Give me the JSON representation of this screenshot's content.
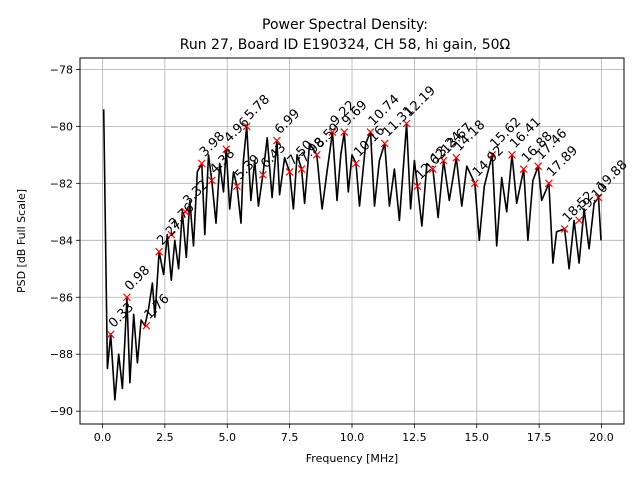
{
  "chart_data": {
    "type": "line",
    "title": "Power Spectral Density:",
    "subtitle": "Run 27, Board ID E190324, CH 58, hi gain, 50Ω",
    "xlabel": "Frequency [MHz]",
    "ylabel": "PSD [dB Full Scale]",
    "xlim": [
      -0.9,
      20.9
    ],
    "ylim": [
      -90.45,
      -77.6
    ],
    "xticks": [
      0.0,
      2.5,
      5.0,
      7.5,
      10.0,
      12.5,
      15.0,
      17.5,
      20.0
    ],
    "xtick_labels": [
      "0.0",
      "2.5",
      "5.0",
      "7.5",
      "10.0",
      "12.5",
      "15.0",
      "17.5",
      "20.0"
    ],
    "yticks": [
      -78,
      -80,
      -82,
      -84,
      -86,
      -88,
      -90
    ],
    "ytick_labels": [
      "−78",
      "−80",
      "−82",
      "−84",
      "−86",
      "−88",
      "−90"
    ],
    "grid": true,
    "series": [
      {
        "color": "#000000",
        "x": [
          0.05,
          0.2,
          0.33,
          0.5,
          0.65,
          0.8,
          0.9,
          0.98,
          1.1,
          1.25,
          1.4,
          1.55,
          1.7,
          1.85,
          2.0,
          2.1,
          2.27,
          2.45,
          2.6,
          2.76,
          2.9,
          3.05,
          3.2,
          3.36,
          3.5,
          3.65,
          3.8,
          3.98,
          4.1,
          4.25,
          4.38,
          4.55,
          4.7,
          4.85,
          4.96,
          5.1,
          5.25,
          5.39,
          5.55,
          5.65,
          5.78,
          5.95,
          6.1,
          6.25,
          6.43,
          6.6,
          6.8,
          6.99,
          7.1,
          7.3,
          7.5,
          7.65,
          7.8,
          7.98,
          8.1,
          8.3,
          8.59,
          8.8,
          9.0,
          9.22,
          9.4,
          9.55,
          9.69,
          9.85,
          10.0,
          10.16,
          10.3,
          10.55,
          10.74,
          10.9,
          11.1,
          11.31,
          11.5,
          11.7,
          11.9,
          12.19,
          12.35,
          12.5,
          12.62,
          12.8,
          13.0,
          13.24,
          13.45,
          13.67,
          13.9,
          14.18,
          14.4,
          14.6,
          14.92,
          15.1,
          15.3,
          15.62,
          15.8,
          16.0,
          16.2,
          16.41,
          16.6,
          16.88,
          17.05,
          17.25,
          17.46,
          17.6,
          17.89,
          18.05,
          18.2,
          18.52,
          18.7,
          18.9,
          19.1,
          19.3,
          19.5,
          19.7,
          19.88,
          19.98
        ],
        "values": [
          -79.4,
          -88.5,
          -87.3,
          -89.6,
          -88.0,
          -89.2,
          -87.5,
          -86.0,
          -89.0,
          -86.6,
          -88.3,
          -86.8,
          -87.0,
          -86.4,
          -85.5,
          -86.7,
          -84.4,
          -85.2,
          -83.8,
          -85.4,
          -84.0,
          -85.0,
          -83.0,
          -84.6,
          -82.6,
          -84.2,
          -81.6,
          -81.3,
          -83.8,
          -81.0,
          -81.9,
          -83.4,
          -81.3,
          -82.3,
          -80.8,
          -82.9,
          -81.6,
          -82.1,
          -83.4,
          -81.2,
          -80.0,
          -82.6,
          -81.2,
          -82.8,
          -81.7,
          -80.4,
          -82.5,
          -80.5,
          -82.4,
          -81.1,
          -81.6,
          -82.9,
          -81.0,
          -81.5,
          -82.7,
          -80.6,
          -81.0,
          -82.9,
          -81.6,
          -80.2,
          -82.6,
          -81.0,
          -80.2,
          -82.3,
          -81.0,
          -81.3,
          -82.8,
          -80.6,
          -80.2,
          -82.8,
          -81.2,
          -80.6,
          -82.8,
          -81.5,
          -83.3,
          -79.9,
          -82.9,
          -81.2,
          -82.1,
          -83.5,
          -81.3,
          -81.5,
          -83.2,
          -81.2,
          -82.6,
          -81.1,
          -82.8,
          -81.4,
          -82.0,
          -84.0,
          -82.1,
          -81.0,
          -84.2,
          -81.8,
          -83.0,
          -81.0,
          -82.7,
          -81.5,
          -84.0,
          -81.9,
          -81.4,
          -82.6,
          -82.0,
          -84.8,
          -83.7,
          -83.6,
          -85.0,
          -83.3,
          -84.8,
          -82.9,
          -84.3,
          -82.7,
          -82.5,
          -84.0
        ]
      }
    ],
    "peaks": {
      "x": [
        0.33,
        0.98,
        1.76,
        2.27,
        2.76,
        3.32,
        3.98,
        4.38,
        4.96,
        5.39,
        5.78,
        6.43,
        6.99,
        7.5,
        7.98,
        8.59,
        9.22,
        9.69,
        10.16,
        10.74,
        11.31,
        12.19,
        12.62,
        13.24,
        13.67,
        14.18,
        14.92,
        15.62,
        16.41,
        16.88,
        17.46,
        17.89,
        18.52,
        19.1,
        19.88
      ],
      "y": [
        -87.3,
        -86.0,
        -87.0,
        -84.4,
        -83.8,
        -83.0,
        -81.3,
        -81.9,
        -80.8,
        -82.1,
        -80.0,
        -81.7,
        -80.5,
        -81.6,
        -81.5,
        -81.0,
        -80.2,
        -80.2,
        -81.3,
        -80.2,
        -80.6,
        -79.9,
        -82.1,
        -81.5,
        -81.2,
        -81.1,
        -82.0,
        -81.0,
        -81.0,
        -81.5,
        -81.4,
        -82.0,
        -83.6,
        -83.3,
        -82.5
      ],
      "labels": [
        "0.33",
        "0.98",
        "1.76",
        "2.27",
        "2.76",
        "3.32",
        "3.98",
        "4.38",
        "4.96",
        "5.39",
        "5.78",
        "6.43",
        "6.99",
        "7.50",
        "7.98",
        "8.59",
        "9.22",
        "9.69",
        "10.16",
        "10.74",
        "11.31",
        "12.19",
        "12.62",
        "13.24",
        "13.67",
        "14.18",
        "14.92",
        "15.62",
        "16.41",
        "16.88",
        "17.46",
        "17.89",
        "18.52",
        "19.10",
        "19.88"
      ],
      "marker": "x",
      "marker_color": "#ff0000"
    }
  }
}
